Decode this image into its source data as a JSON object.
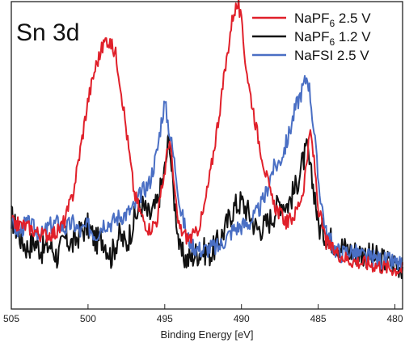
{
  "chart_data": {
    "type": "line",
    "panel_label": "Sn 3d",
    "xlabel": "Binding Energy [eV]",
    "ylabel": "",
    "xlim": [
      505,
      479.5
    ],
    "x_reversed": true,
    "ylim": [
      0,
      100
    ],
    "x_ticks": [
      505,
      500,
      495,
      490,
      485,
      480
    ],
    "y_ticks_shown": false,
    "grid": false,
    "legend_position": "top-right",
    "series": [
      {
        "name": "NaPF",
        "name_sub": "6",
        "name_suffix": "2.5 V",
        "color": "#e0202a",
        "x": [
          505.0,
          504.0,
          503.0,
          502.0,
          501.5,
          501.0,
          500.5,
          500.0,
          499.5,
          499.0,
          498.8,
          498.5,
          498.2,
          498.0,
          497.7,
          497.5,
          497.0,
          496.5,
          496.0,
          495.5,
          495.0,
          494.7,
          494.5,
          494.2,
          494.0,
          493.5,
          493.0,
          492.5,
          492.0,
          491.5,
          491.0,
          490.7,
          490.5,
          490.2,
          490.0,
          489.8,
          489.5,
          489.2,
          489.0,
          488.5,
          488.0,
          487.5,
          487.0,
          486.5,
          486.0,
          485.7,
          485.5,
          485.2,
          485.0,
          484.5,
          484.0,
          483.0,
          482.0,
          481.0,
          480.0,
          479.5
        ],
        "y": [
          28,
          27,
          24,
          25,
          29,
          37,
          52,
          68,
          79,
          86,
          88,
          86,
          83,
          77,
          66,
          58,
          38,
          30,
          26,
          29,
          45,
          56,
          46,
          30,
          26,
          23,
          24,
          31,
          45,
          62,
          80,
          91,
          97,
          99,
          93,
          83,
          72,
          64,
          58,
          46,
          35,
          31,
          28,
          31,
          38,
          50,
          58,
          45,
          33,
          22,
          19,
          16,
          15,
          14,
          13,
          13
        ]
      },
      {
        "name": "NaPF",
        "name_sub": "6",
        "name_suffix": "1.2 V",
        "color": "#111111",
        "x": [
          505.0,
          504.5,
          504.0,
          503.5,
          503.0,
          502.5,
          502.0,
          501.5,
          501.0,
          500.5,
          500.0,
          499.5,
          499.0,
          498.5,
          498.0,
          497.5,
          497.0,
          496.5,
          496.0,
          495.5,
          495.0,
          494.7,
          494.5,
          494.2,
          494.0,
          493.5,
          493.0,
          492.5,
          492.0,
          491.5,
          491.0,
          490.5,
          490.0,
          489.5,
          489.0,
          488.5,
          488.0,
          487.5,
          487.0,
          486.5,
          486.0,
          485.7,
          485.5,
          485.2,
          485.0,
          484.5,
          484.0,
          483.0,
          482.0,
          481.0,
          480.0,
          479.5
        ],
        "y": [
          30,
          24,
          20,
          22,
          19,
          21,
          17,
          23,
          21,
          25,
          27,
          22,
          23,
          17,
          24,
          21,
          29,
          34,
          30,
          34,
          45,
          57,
          41,
          28,
          18,
          16,
          18,
          19,
          18,
          22,
          27,
          33,
          35,
          31,
          26,
          27,
          30,
          35,
          34,
          39,
          48,
          52,
          44,
          37,
          27,
          24,
          22,
          19,
          18,
          16,
          15,
          14
        ]
      },
      {
        "name": "NaFSI",
        "name_sub": "",
        "name_suffix": "2.5 V",
        "color": "#4a6fc4",
        "x": [
          505.0,
          504.5,
          504.0,
          503.5,
          503.0,
          502.5,
          502.0,
          501.5,
          501.0,
          500.5,
          500.0,
          499.5,
          499.0,
          498.5,
          498.0,
          497.5,
          497.0,
          496.5,
          496.0,
          495.5,
          495.2,
          495.0,
          494.8,
          494.5,
          494.2,
          494.0,
          493.5,
          493.0,
          492.5,
          492.0,
          491.5,
          491.0,
          490.5,
          490.0,
          489.5,
          489.0,
          488.5,
          488.0,
          487.5,
          487.0,
          486.5,
          486.0,
          485.7,
          485.5,
          485.2,
          485.0,
          484.5,
          484.0,
          483.5,
          483.0,
          482.0,
          481.0,
          480.0,
          479.5
        ],
        "y": [
          28,
          25,
          28,
          26,
          24,
          27,
          28,
          26,
          28,
          25,
          27,
          24,
          28,
          28,
          30,
          31,
          33,
          38,
          41,
          51,
          62,
          67,
          61,
          52,
          42,
          33,
          23,
          20,
          19,
          20,
          20,
          23,
          26,
          27,
          28,
          31,
          36,
          45,
          48,
          55,
          65,
          72,
          76,
          69,
          54,
          42,
          25,
          20,
          18,
          19,
          17,
          16,
          15,
          14
        ]
      }
    ]
  }
}
